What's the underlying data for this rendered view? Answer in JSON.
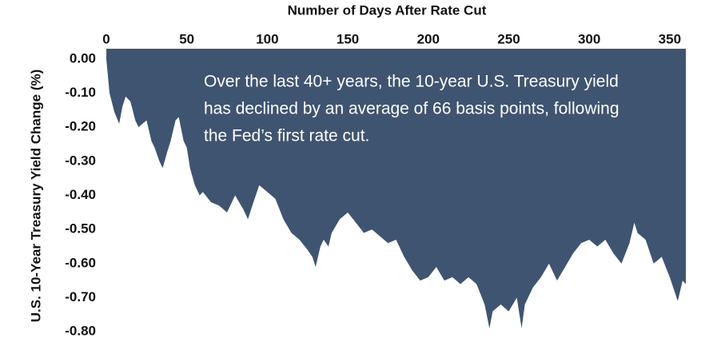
{
  "chart_data": {
    "type": "area",
    "xlabel": "Number of Days After Rate Cut",
    "ylabel": "U.S. 10-Year Treasury Yield Change (%)",
    "annotation": [
      "Over the last 40+ years, the 10-year U.S. Treasury yield",
      "has declined by an average of 66 basis points, following",
      "the Fed’s first rate cut."
    ],
    "color": "#3f5470",
    "x": [
      0,
      2,
      5,
      8,
      10,
      12,
      15,
      18,
      20,
      25,
      28,
      30,
      33,
      35,
      38,
      40,
      43,
      45,
      48,
      50,
      52,
      55,
      58,
      60,
      65,
      70,
      75,
      80,
      85,
      88,
      90,
      95,
      100,
      105,
      110,
      115,
      120,
      125,
      128,
      130,
      133,
      135,
      138,
      140,
      145,
      150,
      155,
      160,
      165,
      170,
      175,
      180,
      185,
      190,
      195,
      200,
      205,
      210,
      215,
      220,
      225,
      230,
      235,
      238,
      240,
      245,
      250,
      255,
      258,
      260,
      265,
      270,
      275,
      280,
      285,
      290,
      295,
      300,
      305,
      310,
      315,
      320,
      325,
      328,
      330,
      335,
      340,
      345,
      350,
      355,
      358,
      360
    ],
    "values": [
      0,
      -0.1,
      -0.155,
      -0.19,
      -0.14,
      -0.11,
      -0.125,
      -0.18,
      -0.2,
      -0.18,
      -0.24,
      -0.26,
      -0.3,
      -0.32,
      -0.27,
      -0.24,
      -0.18,
      -0.17,
      -0.24,
      -0.26,
      -0.32,
      -0.37,
      -0.4,
      -0.39,
      -0.42,
      -0.43,
      -0.45,
      -0.4,
      -0.44,
      -0.47,
      -0.44,
      -0.37,
      -0.39,
      -0.41,
      -0.47,
      -0.51,
      -0.53,
      -0.56,
      -0.58,
      -0.61,
      -0.55,
      -0.53,
      -0.55,
      -0.51,
      -0.47,
      -0.45,
      -0.48,
      -0.51,
      -0.5,
      -0.52,
      -0.54,
      -0.53,
      -0.58,
      -0.62,
      -0.65,
      -0.64,
      -0.61,
      -0.65,
      -0.64,
      -0.66,
      -0.64,
      -0.66,
      -0.72,
      -0.79,
      -0.74,
      -0.72,
      -0.74,
      -0.7,
      -0.79,
      -0.72,
      -0.67,
      -0.64,
      -0.6,
      -0.65,
      -0.61,
      -0.57,
      -0.54,
      -0.53,
      -0.55,
      -0.53,
      -0.57,
      -0.6,
      -0.54,
      -0.48,
      -0.51,
      -0.53,
      -0.6,
      -0.58,
      -0.64,
      -0.71,
      -0.65,
      -0.66
    ],
    "xlim": [
      0,
      360
    ],
    "ylim": [
      -0.83,
      0.03
    ],
    "xticks": [
      0,
      50,
      100,
      150,
      200,
      250,
      300,
      350
    ],
    "yticks": [
      {
        "value": 0,
        "label": "0.00"
      },
      {
        "value": -0.1,
        "label": "-0.10"
      },
      {
        "value": -0.2,
        "label": "-0.20"
      },
      {
        "value": -0.3,
        "label": "-0.30"
      },
      {
        "value": -0.4,
        "label": "-0.40"
      },
      {
        "value": -0.5,
        "label": "-0.50"
      },
      {
        "value": -0.6,
        "label": "-0.60"
      },
      {
        "value": -0.7,
        "label": "-0.70"
      },
      {
        "value": -0.8,
        "label": "-0.80"
      }
    ]
  }
}
